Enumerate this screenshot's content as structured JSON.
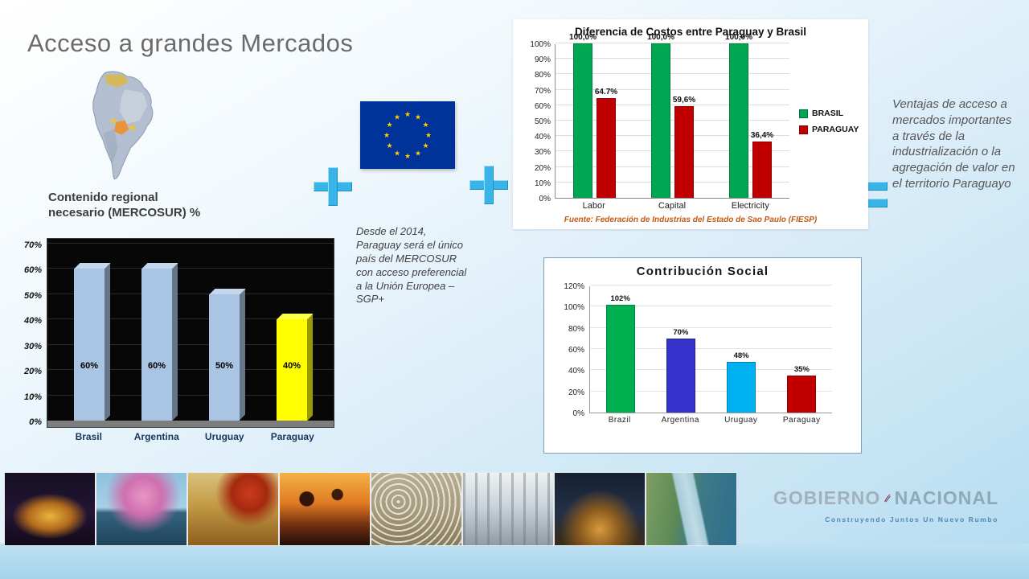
{
  "slide": {
    "title": "Acceso a grandes Mercados",
    "regional_label_line1": "Contenido regional",
    "regional_label_line2": "necesario (MERCOSUR) %",
    "eu_access_text": "Desde el 2014, Paraguay será el único país del MERCOSUR con acceso preferencial a la Unión Europea – SGP+",
    "advantages_text": "Ventajas de acceso a mercados importantes a través de la industrialización o la agregación de valor en el territorio Paraguayo",
    "symbols": [
      "plus",
      "plus",
      "equals"
    ],
    "icons": [
      "south-america-map",
      "eu-flag",
      "plus-icon",
      "plus-icon",
      "equals-icon"
    ]
  },
  "chart_data": [
    {
      "id": "mercosur-regional-content",
      "type": "bar",
      "style": "3d-black-plot",
      "title": "Contenido regional necesario (MERCOSUR) %",
      "categories": [
        "Brasil",
        "Argentina",
        "Uruguay",
        "Paraguay"
      ],
      "values": [
        60,
        60,
        50,
        40
      ],
      "value_labels": [
        "60%",
        "60%",
        "50%",
        "40%"
      ],
      "bar_colors": [
        "#aac4e4",
        "#aac4e4",
        "#aac4e4",
        "#ffff00"
      ],
      "yticks": [
        "0%",
        "10%",
        "20%",
        "30%",
        "40%",
        "50%",
        "60%",
        "70%"
      ],
      "ylim": [
        0,
        70
      ],
      "grid": true,
      "legend": "none"
    },
    {
      "id": "cost-difference",
      "type": "bar",
      "grouped": true,
      "title": "Diferencia de Costos entre Paraguay y Brasil",
      "categories": [
        "Labor",
        "Capital",
        "Electricity"
      ],
      "series": [
        {
          "name": "BRASIL",
          "color": "#00a651",
          "values": [
            100.0,
            100.0,
            100.0
          ],
          "value_labels": [
            "100,0%",
            "100,0%",
            "100,0%"
          ]
        },
        {
          "name": "PARAGUAY",
          "color": "#c00000",
          "values": [
            64.7,
            59.6,
            36.4
          ],
          "value_labels": [
            "64.7%",
            "59,6%",
            "36,4%"
          ]
        }
      ],
      "yticks": [
        "0%",
        "10%",
        "20%",
        "30%",
        "40%",
        "50%",
        "60%",
        "70%",
        "80%",
        "90%",
        "100%"
      ],
      "ylim": [
        0,
        100
      ],
      "grid": true,
      "legend_position": "right",
      "source": "Fuente: Federación de Industrias del Estado de Sao Paulo (FIESP)"
    },
    {
      "id": "social-contribution",
      "type": "bar",
      "title": "Contribución Social",
      "categories": [
        "Brazil",
        "Argentina",
        "Uruguay",
        "Paraguay"
      ],
      "values": [
        102,
        70,
        48,
        35
      ],
      "value_labels": [
        "102%",
        "70%",
        "48%",
        "35%"
      ],
      "bar_colors": [
        "#00b050",
        "#3333cc",
        "#00b0f0",
        "#c00000"
      ],
      "yticks": [
        "0%",
        "20%",
        "40%",
        "60%",
        "80%",
        "100%",
        "120%"
      ],
      "ylim": [
        0,
        120
      ],
      "grid": true,
      "legend": "none"
    }
  ],
  "footer": {
    "photos": [
      "church-night",
      "lapacho-tree-lake",
      "soy-harvest",
      "palm-trees-sunset",
      "livestock-herd",
      "factory-interior",
      "night-gathering",
      "river-barge"
    ],
    "logo": {
      "word1": "GOBIERNO",
      "word2": "NACIONAL",
      "tagline": "Construyendo Juntos Un Nuevo Rumbo"
    }
  },
  "colors": {
    "accent_blue": "#38b5e6",
    "eu_blue": "#003399",
    "eu_star_yellow": "#ffcc00",
    "brasil_green": "#00a651",
    "paraguay_red": "#c00000",
    "highlight_yellow": "#ffff00"
  }
}
